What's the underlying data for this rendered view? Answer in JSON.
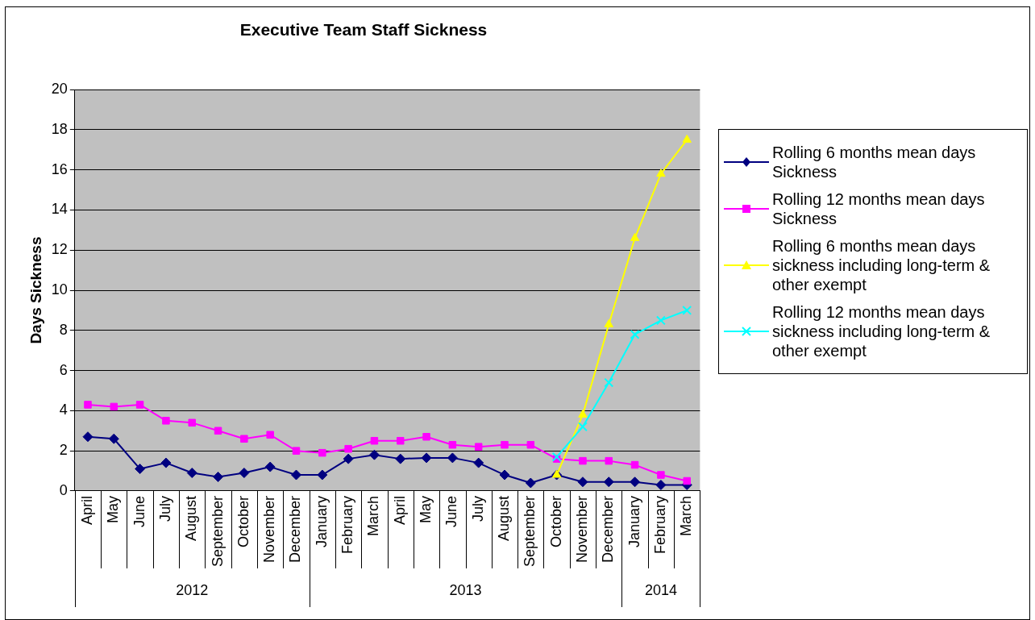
{
  "chart_data": {
    "type": "line",
    "title": "Executive Team Staff Sickness",
    "ylabel": "Days Sickness",
    "categories": [
      "April",
      "May",
      "June",
      "July",
      "August",
      "September",
      "October",
      "November",
      "December",
      "January",
      "February",
      "March",
      "April",
      "May",
      "June",
      "July",
      "August",
      "September",
      "October",
      "November",
      "December",
      "January",
      "February",
      "March"
    ],
    "ylim": [
      0,
      20
    ],
    "yticks": [
      0,
      2,
      4,
      6,
      8,
      10,
      12,
      14,
      16,
      18,
      20
    ],
    "grid": "y",
    "legend": "right",
    "annotations": [
      "2012",
      "2013",
      "2014"
    ],
    "series": [
      {
        "name": "Rolling 6 months mean days Sickness",
        "color": "#000080",
        "marker": "diamond",
        "values": [
          2.7,
          2.6,
          1.1,
          1.4,
          0.9,
          0.7,
          0.9,
          1.2,
          0.8,
          0.8,
          1.6,
          1.8,
          1.6,
          1.65,
          1.65,
          1.4,
          0.8,
          0.4,
          0.8,
          0.45,
          0.45,
          0.45,
          0.3,
          0.3
        ]
      },
      {
        "name": "Rolling 12 months mean days Sickness",
        "color": "#ff00ff",
        "marker": "square",
        "values": [
          4.3,
          4.2,
          4.3,
          3.5,
          3.4,
          3.0,
          2.6,
          2.8,
          2.0,
          1.9,
          2.1,
          2.5,
          2.5,
          2.7,
          2.3,
          2.2,
          2.3,
          2.3,
          1.6,
          1.5,
          1.5,
          1.3,
          0.8,
          0.5
        ]
      },
      {
        "name": "Rolling 6 months mean days sickness including long-term & other exempt",
        "color": "#ffff00",
        "marker": "triangle",
        "values": [
          null,
          null,
          null,
          null,
          null,
          null,
          null,
          null,
          null,
          null,
          null,
          null,
          null,
          null,
          null,
          null,
          null,
          null,
          0.8,
          3.8,
          8.3,
          12.6,
          15.8,
          17.5
        ]
      },
      {
        "name": "Rolling 12 months mean days sickness including long-term & other exempt",
        "color": "#00ffff",
        "marker": "cross",
        "values": [
          null,
          null,
          null,
          null,
          null,
          null,
          null,
          null,
          null,
          null,
          null,
          null,
          null,
          null,
          null,
          null,
          null,
          null,
          1.7,
          3.2,
          5.4,
          7.8,
          8.5,
          9.0
        ]
      }
    ]
  }
}
